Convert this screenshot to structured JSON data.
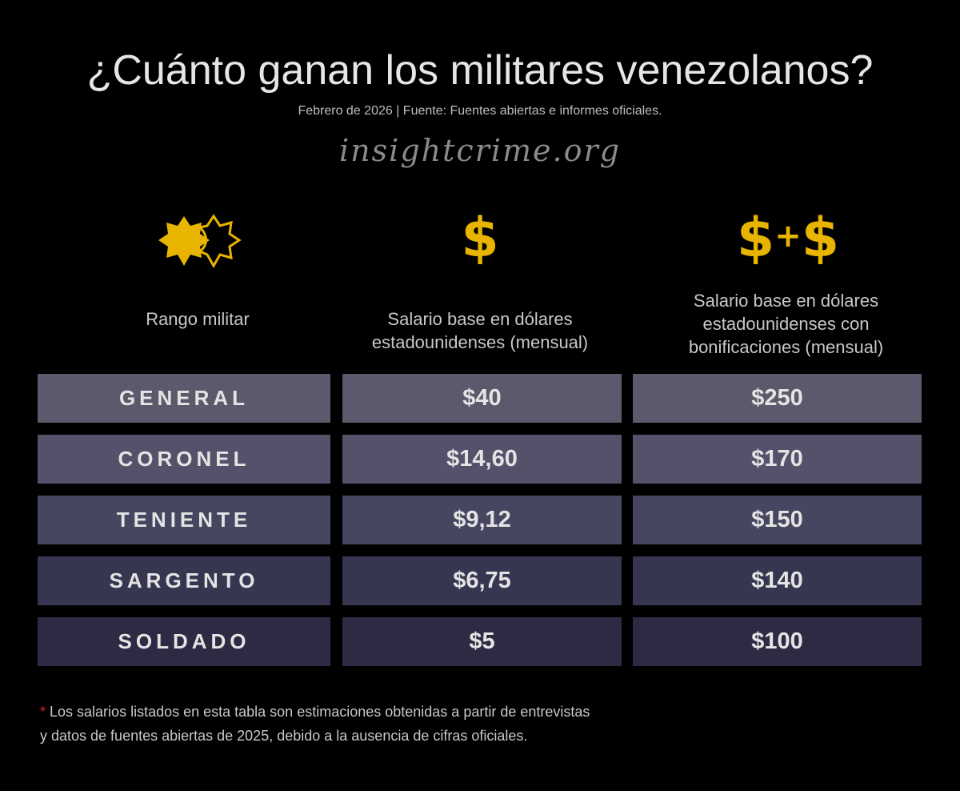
{
  "title": "¿Cuánto ganan los militares venezolanos?",
  "subtitle": "Febrero de 2026 | Fuente: Fuentes abiertas e informes oficiales.",
  "logo": "insightcrime.org",
  "colors": {
    "accent": "#e8b400",
    "rows": [
      "#5b5a6c",
      "#53526a",
      "#474660",
      "#373650",
      "#2d2b44"
    ]
  },
  "columns": [
    {
      "icon": "military-rank-icon",
      "label": "Rango militar"
    },
    {
      "icon": "dollar-icon",
      "symbol": "$",
      "label": "Salario base en dólares estadounidenses  (mensual)"
    },
    {
      "icon": "dollar-plus-dollar-icon",
      "symbol": "$",
      "plus": "+",
      "label": "Salario base en dólares estadounidenses con bonificaciones (mensual)"
    }
  ],
  "rows": [
    {
      "rank": "GENERAL",
      "base": "$40",
      "bonus": "$250"
    },
    {
      "rank": "CORONEL",
      "base": "$14,60",
      "bonus": "$170"
    },
    {
      "rank": "TENIENTE",
      "base": "$9,12",
      "bonus": "$150"
    },
    {
      "rank": "SARGENTO",
      "base": "$6,75",
      "bonus": "$140"
    },
    {
      "rank": "SOLDADO",
      "base": "$5",
      "bonus": "$100"
    }
  ],
  "footnote": {
    "marker": "*",
    "line1": " Los salarios listados en esta tabla son estimaciones obtenidas a partir de entrevistas",
    "line2": "y datos de fuentes abiertas de 2025, debido a la ausencia de cifras oficiales."
  }
}
